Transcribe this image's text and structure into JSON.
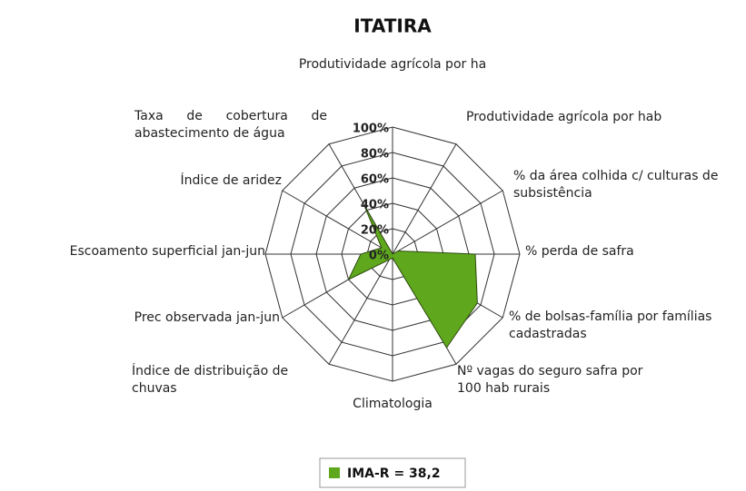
{
  "chart_data": {
    "type": "radar",
    "title": "ITATIRA",
    "categories": [
      "Produtividade agrícola por ha",
      "Produtividade agrícola por hab",
      "% da área colhida c/ culturas de subsistência",
      "% perda de safra",
      "% de bolsas-família por famílias cadastradas",
      "Nº vagas do seguro safra por 100 hab rurais",
      "Climatologia",
      "Índice de distribuição de chuvas",
      "Prec observada  jan-jun",
      "Escoamento superficial jan-jun",
      "Índice de aridez",
      "Taxa de cobertura de abastecimento de água"
    ],
    "series": [
      {
        "name": "IMA-R = 38,2",
        "color": "#5fa81e",
        "values": [
          0,
          0,
          5,
          65,
          77,
          85,
          3,
          5,
          40,
          25,
          10,
          45
        ]
      }
    ],
    "ylim": [
      0,
      100
    ],
    "yticks": [
      {
        "value": 0,
        "label": "0%"
      },
      {
        "value": 20,
        "label": "20%"
      },
      {
        "value": 40,
        "label": "40%"
      },
      {
        "value": 60,
        "label": "60%"
      },
      {
        "value": 80,
        "label": "80%"
      },
      {
        "value": 100,
        "label": "100%"
      }
    ],
    "grid": true,
    "legend": "bottom"
  }
}
